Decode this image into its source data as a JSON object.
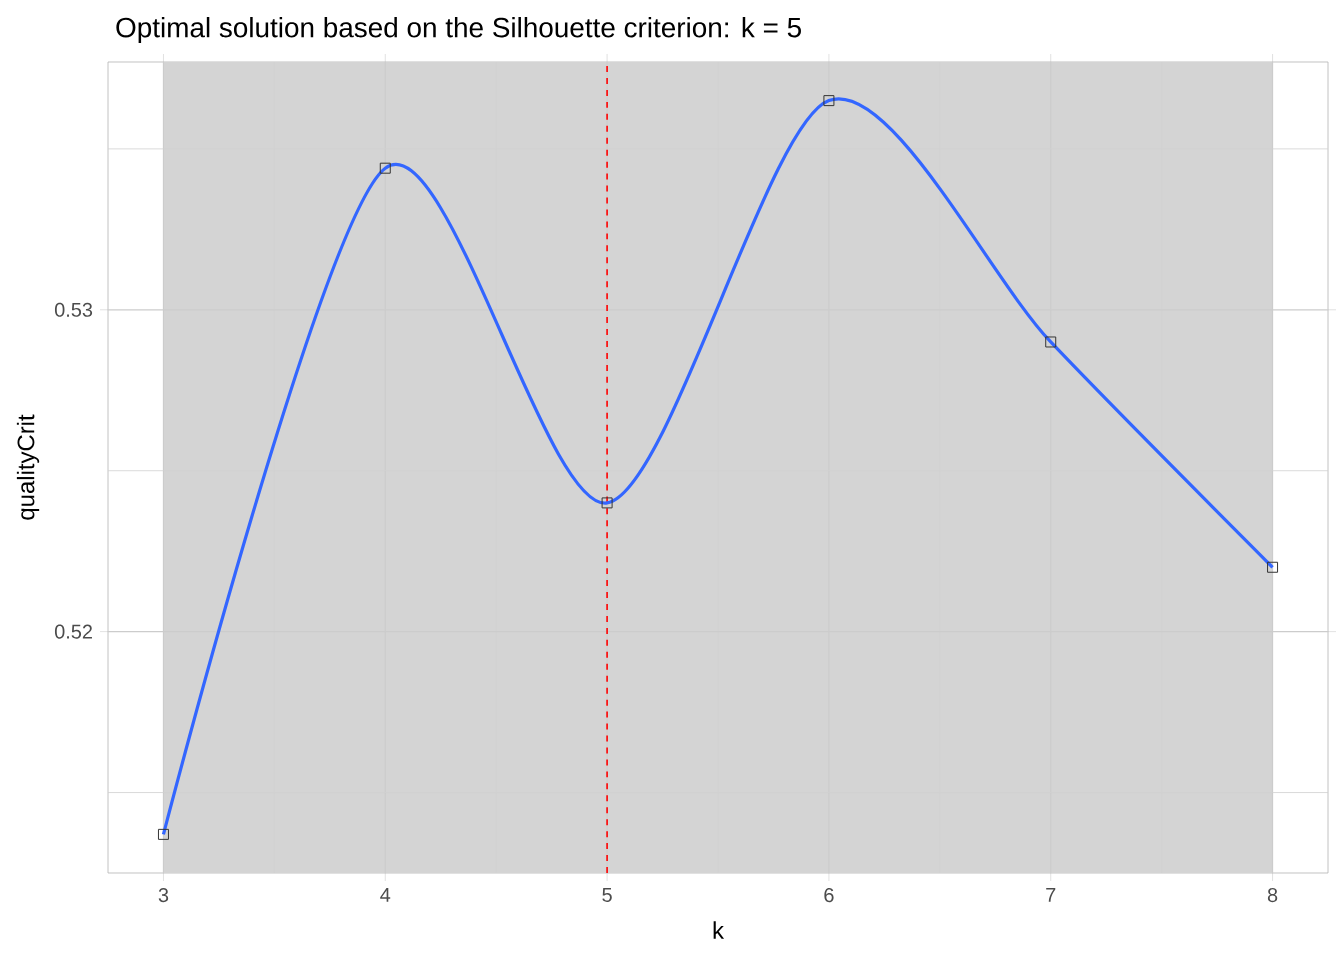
{
  "chart_data": {
    "type": "line",
    "title": "Optimal solution based on the Silhouette criterion: k =  5",
    "xlabel": "k",
    "ylabel": "qualityCrit",
    "x": [
      3,
      4,
      5,
      6,
      7,
      8
    ],
    "series": [
      {
        "color": "#3366ff",
        "values": [
          0.5137,
          0.5344,
          0.524,
          0.5365,
          0.529,
          0.522
        ]
      }
    ],
    "marker": "square",
    "line_style": "solid",
    "grid": true,
    "xlim": [
      2.75,
      8.25
    ],
    "ylim": [
      0.5125,
      0.5377
    ],
    "xticks": [
      3,
      4,
      5,
      6,
      7,
      8
    ],
    "yticks": [
      0.52,
      0.53
    ],
    "bands": [
      {
        "axis": "x",
        "from": 3,
        "to": 8,
        "color": "#d4d4d4"
      }
    ],
    "ref_lines": [
      {
        "axis": "x",
        "value": 5,
        "color": "#ff0000",
        "line_style": "dashed"
      }
    ]
  }
}
